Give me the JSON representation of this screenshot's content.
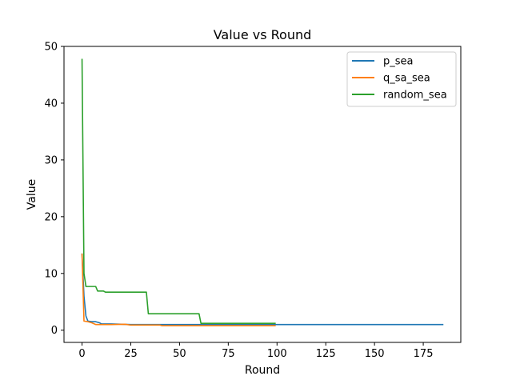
{
  "chart_data": {
    "type": "line",
    "title": "Value vs Round",
    "xlabel": "Round",
    "ylabel": "Value",
    "xlim": [
      -9.25,
      194.25
    ],
    "ylim": [
      -2.15,
      50
    ],
    "xticks": [
      0,
      25,
      50,
      75,
      100,
      125,
      150,
      175
    ],
    "yticks": [
      0,
      10,
      20,
      30,
      40,
      50
    ],
    "grid": false,
    "legend_position": "top-right",
    "series": [
      {
        "name": "p_sea",
        "color": "#1f77b4",
        "points": [
          [
            0,
            13.4
          ],
          [
            1,
            6.0
          ],
          [
            2,
            2.5
          ],
          [
            3,
            1.6
          ],
          [
            5,
            1.5
          ],
          [
            7,
            1.5
          ],
          [
            9,
            1.3
          ],
          [
            10,
            1.1
          ],
          [
            15,
            1.1
          ],
          [
            20,
            1.05
          ],
          [
            25,
            1.0
          ],
          [
            40,
            1.0
          ],
          [
            60,
            1.0
          ],
          [
            100,
            1.0
          ],
          [
            150,
            1.0
          ],
          [
            185,
            1.0
          ]
        ]
      },
      {
        "name": "q_sa_sea",
        "color": "#ff7f0e",
        "points": [
          [
            0,
            13.4
          ],
          [
            1,
            1.6
          ],
          [
            3,
            1.5
          ],
          [
            5,
            1.3
          ],
          [
            7,
            1.0
          ],
          [
            10,
            1.0
          ],
          [
            15,
            1.0
          ],
          [
            22,
            1.05
          ],
          [
            25,
            0.9
          ],
          [
            40,
            0.9
          ],
          [
            41,
            0.8
          ],
          [
            60,
            0.8
          ],
          [
            99,
            0.8
          ]
        ]
      },
      {
        "name": "random_sea",
        "color": "#2ca02c",
        "points": [
          [
            0,
            47.7
          ],
          [
            1,
            10.0
          ],
          [
            2,
            7.7
          ],
          [
            7,
            7.7
          ],
          [
            8,
            6.9
          ],
          [
            11,
            6.9
          ],
          [
            12,
            6.7
          ],
          [
            33,
            6.7
          ],
          [
            34,
            2.9
          ],
          [
            60,
            2.9
          ],
          [
            61,
            1.2
          ],
          [
            99,
            1.2
          ]
        ]
      }
    ]
  }
}
